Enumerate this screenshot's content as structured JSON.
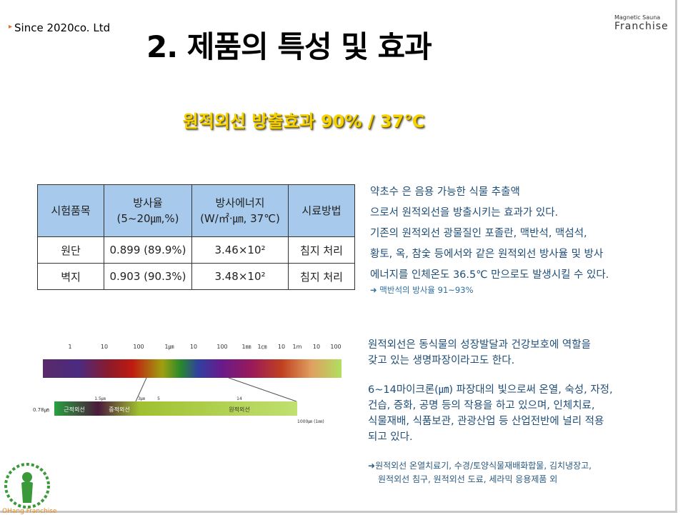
{
  "header": {
    "company": "Since 2020co. Ltd",
    "brand_small": "Magnetic Sauna",
    "brand_big": "Franchise",
    "title": "2. 제품의 특성 및 효과",
    "subtitle": "원적외선 방출효과 90% / 37℃"
  },
  "table": {
    "header": [
      [
        "시험품목"
      ],
      [
        "방사율",
        "(5~20㎛,%)"
      ],
      [
        "방사에너지",
        "(W/㎡·㎛, 37℃)"
      ],
      [
        "시료방법"
      ]
    ],
    "rows": [
      [
        "원단",
        "0.899 (89.9%)",
        "3.46×10²",
        "침지 처리"
      ],
      [
        "벽지",
        "0.903 (90.3%)",
        "3.48×10²",
        "침지 처리"
      ]
    ]
  },
  "paragraph1": [
    "약초수 은 음용 가능한 식물 추출액",
    "으로서 원적외선을 방출시키는 효과가 있다.",
    "기존의 원적외선 광물질인 포졸란, 맥반석, 맥섬석,",
    "황토, 옥, 참숯 등에서와 같은 원적외선 방사율 및 방사",
    "에너지를 인체온도 36.5℃ 만으로도 발생시킬 수 있다."
  ],
  "note1": "맥반석의 방사율 91~93%",
  "paragraph2": [
    "원적외선은 동식물의 성장발달과 건강보호에 역할을",
    "갖고 있는 생명파장이라고도 한다."
  ],
  "paragraph3": [
    "6~14마이크론(㎛) 파장대의 빛으로써 온열, 숙성, 자정,",
    "건습, 증화, 공명 등의 작용을 하고 있으며, 인체치료,",
    "식물재배, 식품보관, 관광산업 등 산업전반에 널리 적용",
    "되고 있다."
  ],
  "note2": [
    "원적외선 온열치료기, 수경/토양식물재배화합물, 김치냉장고,",
    "원적외선 침구, 원적외선 도료, 세라믹 응용제품 외"
  ],
  "spectrum": {
    "scale": [
      "1",
      "10",
      "100",
      "1㎛",
      "10",
      "100",
      "1㎜",
      "1㎝",
      "10",
      "1m",
      "10",
      "100"
    ],
    "start": "0.78㎛",
    "bands": [
      "근적외선",
      "중적외선",
      "원적외선"
    ],
    "marks": [
      "1.5㎛",
      "3㎛",
      "5",
      "14"
    ],
    "end": "1000㎛ (1㎜)"
  },
  "logo": "OHang Franchise"
}
